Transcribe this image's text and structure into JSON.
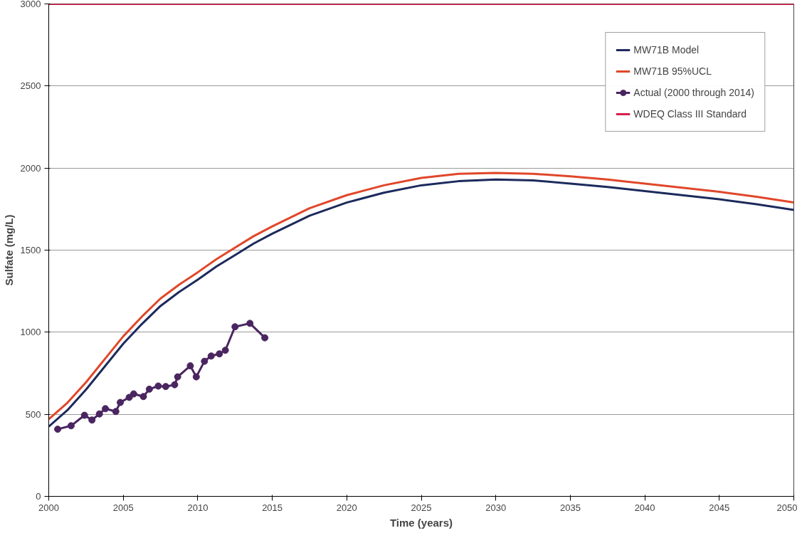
{
  "chart_data": {
    "type": "line",
    "xlabel": "Time (years)",
    "ylabel": "Sulfate (mg/L)",
    "xlim": [
      2000,
      2050
    ],
    "xticks": [
      2000,
      2005,
      2010,
      2015,
      2020,
      2025,
      2030,
      2035,
      2040,
      2045,
      2050
    ],
    "ylim": [
      0,
      3000
    ],
    "yticks": [
      0,
      500,
      1000,
      1500,
      2000,
      2500,
      3000
    ],
    "grid": "y",
    "legend": "top right",
    "series": [
      {
        "name": "MW71B Model",
        "color": "#1c2a5c",
        "marker": "none",
        "x": [
          2000,
          2001.25,
          2002.5,
          2003.75,
          2005,
          2006.25,
          2007.5,
          2008.75,
          2010,
          2011.25,
          2012.5,
          2013.75,
          2015,
          2017.5,
          2020,
          2022.5,
          2025,
          2027.5,
          2030,
          2032.5,
          2035,
          2037.5,
          2040,
          2042.5,
          2045,
          2047.5,
          2050
        ],
        "values": [
          425,
          525,
          650,
          790,
          930,
          1050,
          1160,
          1245,
          1320,
          1400,
          1470,
          1540,
          1600,
          1710,
          1790,
          1850,
          1895,
          1920,
          1930,
          1925,
          1905,
          1885,
          1860,
          1835,
          1810,
          1780,
          1745
        ]
      },
      {
        "name": "MW71B 95%UCL",
        "color": "#e0472a",
        "marker": "none",
        "x": [
          2000,
          2001.25,
          2002.5,
          2003.75,
          2005,
          2006.25,
          2007.5,
          2008.75,
          2010,
          2011.25,
          2012.5,
          2013.75,
          2015,
          2017.5,
          2020,
          2022.5,
          2025,
          2027.5,
          2030,
          2032.5,
          2035,
          2037.5,
          2040,
          2042.5,
          2045,
          2047.5,
          2050
        ],
        "values": [
          470,
          570,
          695,
          835,
          975,
          1095,
          1205,
          1290,
          1365,
          1445,
          1515,
          1585,
          1645,
          1755,
          1835,
          1895,
          1940,
          1965,
          1970,
          1965,
          1950,
          1930,
          1905,
          1880,
          1855,
          1825,
          1790
        ]
      },
      {
        "name": "Actual (2000 through 2014)",
        "color": "#4a2560",
        "marker": "circle",
        "x": [
          2000.6,
          2001.5,
          2002.4,
          2002.9,
          2003.4,
          2003.8,
          2004.5,
          2004.8,
          2005.4,
          2005.7,
          2006.35,
          2006.75,
          2007.35,
          2007.85,
          2008.45,
          2008.65,
          2009.5,
          2009.9,
          2010.45,
          2010.9,
          2011.45,
          2011.85,
          2012.5,
          2013.5,
          2014.5
        ],
        "values": [
          409,
          430,
          494,
          465,
          502,
          534,
          517,
          572,
          603,
          624,
          608,
          653,
          672,
          669,
          680,
          728,
          795,
          728,
          823,
          855,
          868,
          890,
          1033,
          1054,
          966
        ]
      },
      {
        "name": "WDEQ Class III Standard",
        "color": "#d6204a",
        "marker": "none",
        "x": [
          2000,
          2050
        ],
        "values": [
          3000,
          3000
        ]
      }
    ]
  }
}
